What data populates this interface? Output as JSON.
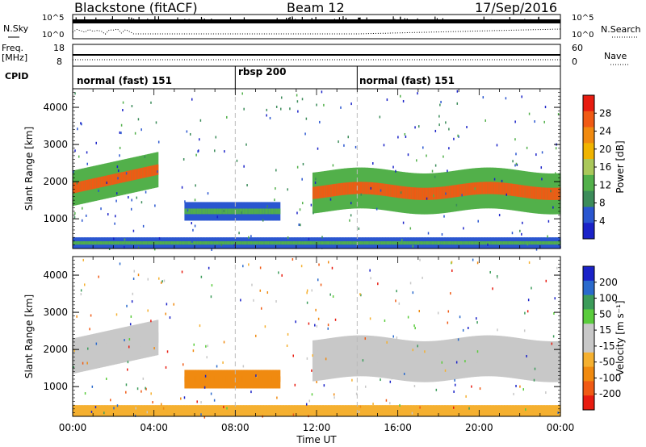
{
  "header": {
    "station": "Blackstone (fitACF)",
    "beam": "Beam 12",
    "date": "17/Sep/2016"
  },
  "top_panels": {
    "left_labels": {
      "nsky": "N.Sky",
      "freq": "Freq.",
      "freq_unit": "[MHz]",
      "cpid": "CPID"
    },
    "right_labels": {
      "nsearch": "N.Search",
      "nave": "Nave"
    },
    "n_ticks_left": [
      "10^5",
      "10^0"
    ],
    "n_ticks_right": [
      "10^5",
      "10^0"
    ],
    "freq_ticks": [
      "18",
      "8"
    ],
    "nave_ticks": [
      "60",
      "0"
    ]
  },
  "colors": {
    "power": [
      "#1a22c8",
      "#2a56d0",
      "#3c8c5a",
      "#52b04a",
      "#aac85a",
      "#f0b400",
      "#f08a10",
      "#f05a14",
      "#e81c10"
    ],
    "velocity": [
      "#e81c10",
      "#f05a14",
      "#f08a10",
      "#f5b030",
      "#c8c8c8",
      "#c8c8c8",
      "#5acc3c",
      "#3c9c5a",
      "#2a6acc",
      "#1a22c8"
    ],
    "grey": "#c8c8c8"
  },
  "chart_data": [
    {
      "type": "heatmap",
      "name": "Power",
      "ylabel": "Slant Range [km]",
      "yticks": [
        1000,
        2000,
        3000,
        4000
      ],
      "ylim": [
        200,
        4500
      ],
      "xlim": [
        0,
        24
      ],
      "cpid_segments": [
        {
          "label": "normal (fast) 151",
          "start": 0,
          "end": 8
        },
        {
          "label": "rbsp 200",
          "start": 8,
          "end": 14
        },
        {
          "label": "normal (fast) 151",
          "start": 14,
          "end": 24
        }
      ],
      "colorbar": {
        "label": "Power [dB]",
        "ticks": [
          "28",
          "24",
          "20",
          "16",
          "12",
          "8",
          "4"
        ],
        "range": [
          0,
          30
        ]
      },
      "echo_bands": [
        {
          "t_start": 0.0,
          "t_end": 4.2,
          "range_start": 1350,
          "range_end": 2300,
          "peak_power": 28
        },
        {
          "t_start": 5.5,
          "t_end": 10.2,
          "range_start": 950,
          "range_end": 1450,
          "peak_power": 10
        },
        {
          "t_start": 11.8,
          "t_end": 24.0,
          "range_start": 1200,
          "range_end": 2300,
          "peak_power": 28
        },
        {
          "t_start": 0.0,
          "t_end": 24.0,
          "range_start": 200,
          "range_end": 500,
          "peak_power": 12
        }
      ]
    },
    {
      "type": "heatmap",
      "name": "Velocity",
      "ylabel": "Slant Range [km]",
      "xlabel": "Time UT",
      "xticks": [
        "00:00",
        "04:00",
        "08:00",
        "12:00",
        "16:00",
        "20:00",
        "00:00"
      ],
      "yticks": [
        1000,
        2000,
        3000,
        4000
      ],
      "ylim": [
        200,
        4500
      ],
      "xlim": [
        0,
        24
      ],
      "colorbar": {
        "label": "Velocity [m s⁻¹]",
        "ticks": [
          "200",
          "100",
          "50",
          "15",
          "-15",
          "-50",
          "-100",
          "-200"
        ],
        "range": [
          -250,
          250
        ]
      },
      "echo_bands": [
        {
          "t_start": 0.0,
          "t_end": 4.2,
          "range_start": 1350,
          "range_end": 2300,
          "velocity": 0
        },
        {
          "t_start": 5.5,
          "t_end": 10.2,
          "range_start": 950,
          "range_end": 1450,
          "velocity": -60
        },
        {
          "t_start": 11.8,
          "t_end": 24.0,
          "range_start": 1200,
          "range_end": 2300,
          "velocity": 0
        },
        {
          "t_start": 0.0,
          "t_end": 24.0,
          "range_start": 200,
          "range_end": 500,
          "velocity": -40
        }
      ]
    }
  ]
}
